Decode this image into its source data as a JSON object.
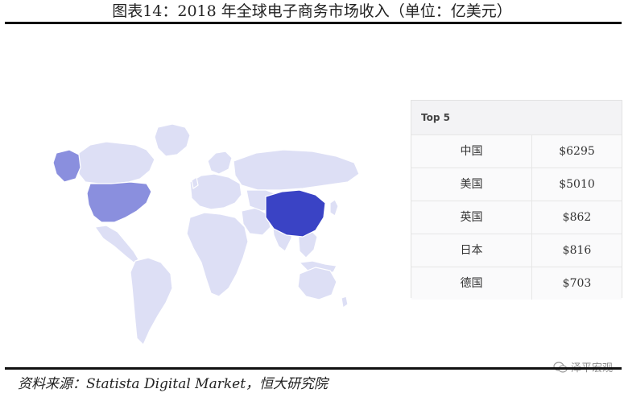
{
  "header": {
    "title": "图表14：2018 年全球电子商务市场收入（单位：亿美元）"
  },
  "map": {
    "highlight_colors": {
      "top": "#3a43c5",
      "second": "#8a8fde",
      "base": "#dddff5",
      "land_border": "#ffffff"
    },
    "highlighted_regions": [
      "中国",
      "美国"
    ]
  },
  "top5": {
    "header": "Top 5",
    "rows": [
      {
        "country": "中国",
        "value": "$6295"
      },
      {
        "country": "美国",
        "value": "$5010"
      },
      {
        "country": "英国",
        "value": "$862"
      },
      {
        "country": "日本",
        "value": "$816"
      },
      {
        "country": "德国",
        "value": "$703"
      }
    ]
  },
  "footer": {
    "source": "资料来源：Statista Digital Market，恒大研究院",
    "watermark": "泽平宏观",
    "watermark_icon": "wechat-icon"
  }
}
